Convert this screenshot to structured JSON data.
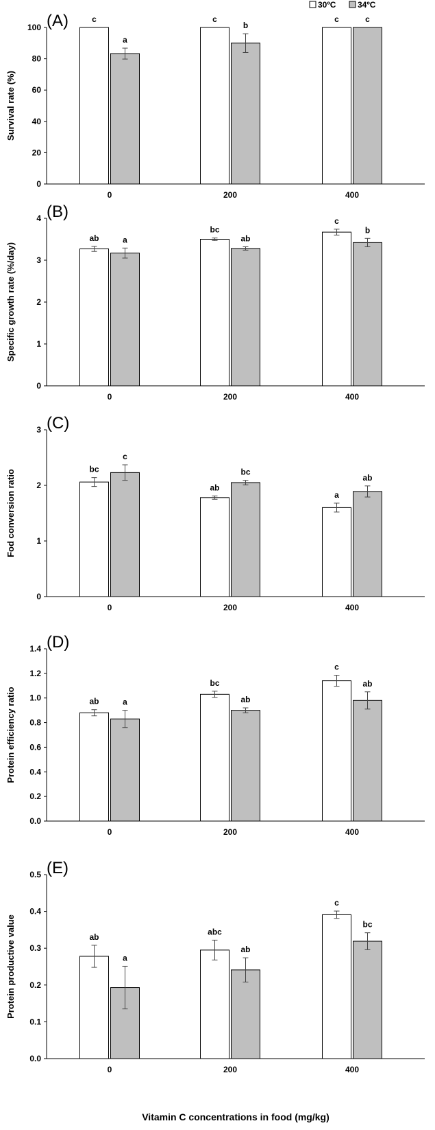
{
  "legend": [
    {
      "label": "30ºC",
      "color": "#ffffff"
    },
    {
      "label": "34ºC",
      "color": "#bfbfbf"
    }
  ],
  "xlabel": "Vitamin C concentrations in food (mg/kg)",
  "chart_data": [
    {
      "panel": "(A)",
      "type": "bar",
      "categories": [
        "0",
        "200",
        "400"
      ],
      "ylabel": "Survival rate (%)",
      "ylim": [
        0,
        100
      ],
      "yticks": [
        "0",
        "20",
        "40",
        "60",
        "80",
        "100"
      ],
      "series": [
        {
          "name": "30ºC",
          "values": [
            100,
            100,
            100
          ],
          "errors": [
            0,
            0,
            0
          ],
          "letters": [
            "c",
            "c",
            "c"
          ]
        },
        {
          "name": "34ºC",
          "values": [
            83.3,
            90,
            100
          ],
          "errors": [
            3.5,
            6,
            0
          ],
          "letters": [
            "a",
            "b",
            "c"
          ]
        }
      ]
    },
    {
      "panel": "(B)",
      "type": "bar",
      "categories": [
        "0",
        "200",
        "400"
      ],
      "ylabel": "Specific growth rate (%/day)",
      "ylim": [
        0,
        4
      ],
      "yticks": [
        "0",
        "1",
        "2",
        "3",
        "4"
      ],
      "series": [
        {
          "name": "30ºC",
          "values": [
            3.27,
            3.5,
            3.67
          ],
          "errors": [
            0.06,
            0.03,
            0.07
          ],
          "letters": [
            "ab",
            "bc",
            "c"
          ]
        },
        {
          "name": "34ºC",
          "values": [
            3.17,
            3.28,
            3.42
          ],
          "errors": [
            0.12,
            0.04,
            0.1
          ],
          "letters": [
            "a",
            "ab",
            "b"
          ]
        }
      ]
    },
    {
      "panel": "(C)",
      "type": "bar",
      "categories": [
        "0",
        "200",
        "400"
      ],
      "ylabel": "Fod conversion ratio",
      "ylim": [
        0,
        3
      ],
      "yticks": [
        "0",
        "1",
        "2",
        "3"
      ],
      "series": [
        {
          "name": "30ºC",
          "values": [
            2.06,
            1.78,
            1.6
          ],
          "errors": [
            0.08,
            0.03,
            0.08
          ],
          "letters": [
            "bc",
            "ab",
            "a"
          ]
        },
        {
          "name": "34ºC",
          "values": [
            2.23,
            2.05,
            1.89
          ],
          "errors": [
            0.14,
            0.04,
            0.1
          ],
          "letters": [
            "c",
            "bc",
            "ab"
          ]
        }
      ]
    },
    {
      "panel": "(D)",
      "type": "bar",
      "categories": [
        "0",
        "200",
        "400"
      ],
      "ylabel": "Protein efficiency ratio",
      "ylim": [
        0,
        1.4
      ],
      "yticks": [
        "0.0",
        "0.2",
        "0.4",
        "0.6",
        "0.8",
        "1.0",
        "1.2",
        "1.4"
      ],
      "series": [
        {
          "name": "30ºC",
          "values": [
            0.88,
            1.03,
            1.14
          ],
          "errors": [
            0.025,
            0.025,
            0.045
          ],
          "letters": [
            "ab",
            "bc",
            "c"
          ]
        },
        {
          "name": "34ºC",
          "values": [
            0.83,
            0.9,
            0.98
          ],
          "errors": [
            0.07,
            0.02,
            0.07
          ],
          "letters": [
            "a",
            "ab",
            "ab"
          ]
        }
      ]
    },
    {
      "panel": "(E)",
      "type": "bar",
      "categories": [
        "0",
        "200",
        "400"
      ],
      "ylabel": "Protein productive value",
      "ylim": [
        0,
        0.5
      ],
      "yticks": [
        "0.0",
        "0.1",
        "0.2",
        "0.3",
        "0.4",
        "0.5"
      ],
      "series": [
        {
          "name": "30ºC",
          "values": [
            0.278,
            0.295,
            0.391
          ],
          "errors": [
            0.03,
            0.027,
            0.01
          ],
          "letters": [
            "ab",
            "abc",
            "c"
          ]
        },
        {
          "name": "34ºC",
          "values": [
            0.193,
            0.241,
            0.319
          ],
          "errors": [
            0.058,
            0.033,
            0.023
          ],
          "letters": [
            "a",
            "ab",
            "bc"
          ]
        }
      ]
    }
  ]
}
